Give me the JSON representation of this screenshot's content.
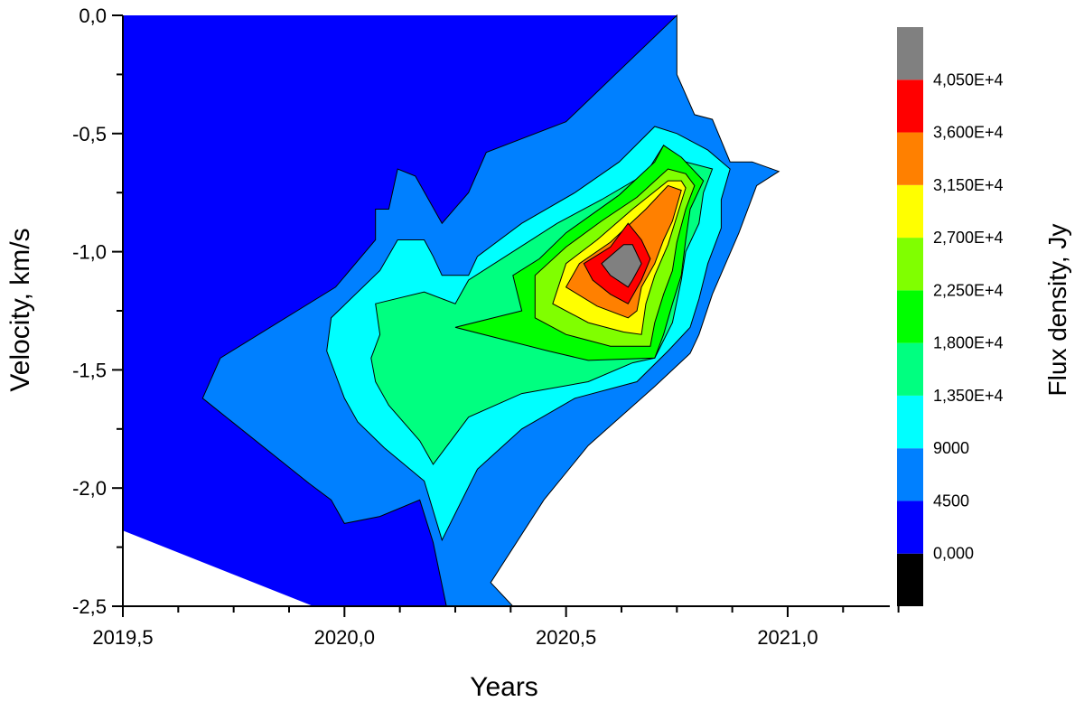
{
  "chart_data": {
    "type": "contour",
    "xlabel": "Years",
    "ylabel": "Velocity, km/s",
    "colorbar_label": "Flux density, Jy",
    "xlim": [
      2019.5,
      2021.25
    ],
    "ylim": [
      -2.5,
      0.0
    ],
    "xticks": [
      {
        "value": 2019.5,
        "label": "2019,5"
      },
      {
        "value": 2020.0,
        "label": "2020,0"
      },
      {
        "value": 2020.5,
        "label": "2020,5"
      },
      {
        "value": 2021.0,
        "label": "2021,0"
      }
    ],
    "yticks": [
      {
        "value": 0.0,
        "label": "0,0"
      },
      {
        "value": -0.5,
        "label": "-0,5"
      },
      {
        "value": -1.0,
        "label": "-1,0"
      },
      {
        "value": -1.5,
        "label": "-1,5"
      },
      {
        "value": -2.0,
        "label": "-2,0"
      },
      {
        "value": -2.5,
        "label": "-2,5"
      }
    ],
    "levels": [
      {
        "min": -4500,
        "max": 0,
        "label": "0,000",
        "color": "#000000"
      },
      {
        "min": 0,
        "max": 4500,
        "label": "4500",
        "color": "#0000ff"
      },
      {
        "min": 4500,
        "max": 9000,
        "label": "9000",
        "color": "#0080ff"
      },
      {
        "min": 9000,
        "max": 13500,
        "label": "1,350E+4",
        "color": "#00ffff"
      },
      {
        "min": 13500,
        "max": 18000,
        "label": "1,800E+4",
        "color": "#00ff80"
      },
      {
        "min": 18000,
        "max": 22500,
        "label": "2,250E+4",
        "color": "#00ff00"
      },
      {
        "min": 22500,
        "max": 27000,
        "label": "2,700E+4",
        "color": "#80ff00"
      },
      {
        "min": 27000,
        "max": 31500,
        "label": "3,150E+4",
        "color": "#ffff00"
      },
      {
        "min": 31500,
        "max": 36000,
        "label": "3,600E+4",
        "color": "#ff8000"
      },
      {
        "min": 36000,
        "max": 40500,
        "label": "4,050E+4",
        "color": "#ff0000"
      },
      {
        "min": 40500,
        "max": 45000,
        "label": "",
        "color": "#808080"
      }
    ],
    "regions": [
      {
        "level": 1,
        "points": [
          [
            2019.5,
            0.0
          ],
          [
            2020.75,
            0.0
          ],
          [
            2020.75,
            -0.25
          ],
          [
            2020.79,
            -0.42
          ],
          [
            2020.83,
            -0.44
          ],
          [
            2020.87,
            -0.62
          ],
          [
            2020.92,
            -0.62
          ],
          [
            2020.98,
            -0.66
          ],
          [
            2020.93,
            -0.72
          ],
          [
            2020.89,
            -0.92
          ],
          [
            2020.86,
            -1.05
          ],
          [
            2020.83,
            -1.18
          ],
          [
            2020.8,
            -1.35
          ],
          [
            2020.78,
            -1.43
          ],
          [
            2020.7,
            -1.57
          ],
          [
            2020.55,
            -1.82
          ],
          [
            2020.45,
            -2.05
          ],
          [
            2020.33,
            -2.4
          ],
          [
            2020.38,
            -2.5
          ],
          [
            2019.93,
            -2.5
          ],
          [
            2019.5,
            -2.18
          ]
        ]
      },
      {
        "level": 2,
        "points": [
          [
            2020.75,
            0.0
          ],
          [
            2020.75,
            -0.25
          ],
          [
            2020.79,
            -0.42
          ],
          [
            2020.83,
            -0.44
          ],
          [
            2020.87,
            -0.62
          ],
          [
            2020.92,
            -0.62
          ],
          [
            2020.98,
            -0.66
          ],
          [
            2020.93,
            -0.72
          ],
          [
            2020.89,
            -0.92
          ],
          [
            2020.86,
            -1.05
          ],
          [
            2020.83,
            -1.18
          ],
          [
            2020.8,
            -1.35
          ],
          [
            2020.78,
            -1.43
          ],
          [
            2020.7,
            -1.57
          ],
          [
            2020.55,
            -1.82
          ],
          [
            2020.45,
            -2.05
          ],
          [
            2020.33,
            -2.4
          ],
          [
            2020.38,
            -2.5
          ],
          [
            2020.23,
            -2.5
          ],
          [
            2020.2,
            -2.23
          ],
          [
            2020.17,
            -2.05
          ],
          [
            2020.08,
            -2.12
          ],
          [
            2020.0,
            -2.15
          ],
          [
            2019.97,
            -2.05
          ],
          [
            2019.92,
            -1.98
          ],
          [
            2019.68,
            -1.62
          ],
          [
            2019.72,
            -1.45
          ],
          [
            2019.98,
            -1.15
          ],
          [
            2020.07,
            -0.95
          ],
          [
            2020.07,
            -0.82
          ],
          [
            2020.1,
            -0.82
          ],
          [
            2020.12,
            -0.65
          ],
          [
            2020.16,
            -0.68
          ],
          [
            2020.22,
            -0.88
          ],
          [
            2020.28,
            -0.75
          ],
          [
            2020.32,
            -0.58
          ],
          [
            2020.5,
            -0.45
          ]
        ]
      },
      {
        "level": 3,
        "points": [
          [
            2019.96,
            -1.42
          ],
          [
            2019.97,
            -1.28
          ],
          [
            2020.08,
            -1.08
          ],
          [
            2020.12,
            -0.95
          ],
          [
            2020.18,
            -0.95
          ],
          [
            2020.2,
            -1.02
          ],
          [
            2020.22,
            -1.1
          ],
          [
            2020.28,
            -1.1
          ],
          [
            2020.3,
            -1.02
          ],
          [
            2020.4,
            -0.88
          ],
          [
            2020.52,
            -0.75
          ],
          [
            2020.62,
            -0.62
          ],
          [
            2020.7,
            -0.47
          ],
          [
            2020.75,
            -0.5
          ],
          [
            2020.82,
            -0.57
          ],
          [
            2020.87,
            -0.65
          ],
          [
            2020.85,
            -0.78
          ],
          [
            2020.85,
            -0.9
          ],
          [
            2020.82,
            -1.05
          ],
          [
            2020.8,
            -1.2
          ],
          [
            2020.78,
            -1.32
          ],
          [
            2020.73,
            -1.42
          ],
          [
            2020.66,
            -1.55
          ],
          [
            2020.52,
            -1.62
          ],
          [
            2020.4,
            -1.75
          ],
          [
            2020.3,
            -1.92
          ],
          [
            2020.22,
            -2.22
          ],
          [
            2020.18,
            -1.97
          ],
          [
            2020.09,
            -1.83
          ],
          [
            2020.03,
            -1.72
          ],
          [
            2020.0,
            -1.62
          ]
        ]
      },
      {
        "level": 4,
        "points": [
          [
            2020.06,
            -1.45
          ],
          [
            2020.08,
            -1.35
          ],
          [
            2020.07,
            -1.22
          ],
          [
            2020.18,
            -1.17
          ],
          [
            2020.25,
            -1.22
          ],
          [
            2020.28,
            -1.12
          ],
          [
            2020.38,
            -1.0
          ],
          [
            2020.48,
            -0.88
          ],
          [
            2020.58,
            -0.78
          ],
          [
            2020.68,
            -0.67
          ],
          [
            2020.72,
            -0.55
          ],
          [
            2020.77,
            -0.62
          ],
          [
            2020.83,
            -0.65
          ],
          [
            2020.81,
            -0.75
          ],
          [
            2020.8,
            -0.88
          ],
          [
            2020.77,
            -1.0
          ],
          [
            2020.76,
            -1.12
          ],
          [
            2020.74,
            -1.3
          ],
          [
            2020.7,
            -1.45
          ],
          [
            2020.65,
            -1.47
          ],
          [
            2020.55,
            -1.55
          ],
          [
            2020.4,
            -1.6
          ],
          [
            2020.28,
            -1.7
          ],
          [
            2020.2,
            -1.9
          ],
          [
            2020.17,
            -1.8
          ],
          [
            2020.1,
            -1.65
          ],
          [
            2020.07,
            -1.55
          ]
        ]
      },
      {
        "level": 5,
        "points": [
          [
            2020.25,
            -1.32
          ],
          [
            2020.4,
            -1.25
          ],
          [
            2020.38,
            -1.1
          ],
          [
            2020.44,
            -1.03
          ],
          [
            2020.5,
            -0.92
          ],
          [
            2020.62,
            -0.76
          ],
          [
            2020.7,
            -0.62
          ],
          [
            2020.72,
            -0.55
          ],
          [
            2020.76,
            -0.6
          ],
          [
            2020.81,
            -0.7
          ],
          [
            2020.78,
            -0.82
          ],
          [
            2020.77,
            -0.95
          ],
          [
            2020.76,
            -1.1
          ],
          [
            2020.74,
            -1.22
          ],
          [
            2020.72,
            -1.35
          ],
          [
            2020.7,
            -1.45
          ],
          [
            2020.55,
            -1.46
          ],
          [
            2020.46,
            -1.42
          ]
        ]
      },
      {
        "level": 6,
        "points": [
          [
            2020.43,
            -1.28
          ],
          [
            2020.43,
            -1.1
          ],
          [
            2020.5,
            -0.98
          ],
          [
            2020.58,
            -0.87
          ],
          [
            2020.66,
            -0.77
          ],
          [
            2020.73,
            -0.65
          ],
          [
            2020.77,
            -0.67
          ],
          [
            2020.79,
            -0.72
          ],
          [
            2020.77,
            -0.82
          ],
          [
            2020.75,
            -0.96
          ],
          [
            2020.74,
            -1.08
          ],
          [
            2020.72,
            -1.18
          ],
          [
            2020.7,
            -1.3
          ],
          [
            2020.69,
            -1.4
          ],
          [
            2020.6,
            -1.4
          ],
          [
            2020.5,
            -1.35
          ]
        ]
      },
      {
        "level": 7,
        "points": [
          [
            2020.47,
            -1.22
          ],
          [
            2020.5,
            -1.05
          ],
          [
            2020.57,
            -0.95
          ],
          [
            2020.65,
            -0.82
          ],
          [
            2020.73,
            -0.7
          ],
          [
            2020.76,
            -0.7
          ],
          [
            2020.77,
            -0.73
          ],
          [
            2020.75,
            -0.85
          ],
          [
            2020.73,
            -0.97
          ],
          [
            2020.7,
            -1.1
          ],
          [
            2020.68,
            -1.22
          ],
          [
            2020.67,
            -1.35
          ],
          [
            2020.63,
            -1.34
          ],
          [
            2020.55,
            -1.3
          ]
        ]
      },
      {
        "level": 8,
        "points": [
          [
            2020.5,
            -1.15
          ],
          [
            2020.53,
            -1.05
          ],
          [
            2020.6,
            -0.96
          ],
          [
            2020.68,
            -0.82
          ],
          [
            2020.73,
            -0.72
          ],
          [
            2020.76,
            -0.74
          ],
          [
            2020.74,
            -0.87
          ],
          [
            2020.72,
            -0.95
          ],
          [
            2020.7,
            -1.05
          ],
          [
            2020.67,
            -1.15
          ],
          [
            2020.66,
            -1.25
          ],
          [
            2020.64,
            -1.28
          ],
          [
            2020.57,
            -1.23
          ]
        ]
      },
      {
        "level": 9,
        "points": [
          [
            2020.54,
            -1.05
          ],
          [
            2020.6,
            -0.98
          ],
          [
            2020.64,
            -0.88
          ],
          [
            2020.67,
            -0.95
          ],
          [
            2020.69,
            -1.03
          ],
          [
            2020.67,
            -1.12
          ],
          [
            2020.64,
            -1.22
          ],
          [
            2020.6,
            -1.18
          ],
          [
            2020.56,
            -1.12
          ]
        ]
      },
      {
        "level": 10,
        "points": [
          [
            2020.58,
            -1.05
          ],
          [
            2020.63,
            -0.97
          ],
          [
            2020.65,
            -0.97
          ],
          [
            2020.67,
            -1.05
          ],
          [
            2020.65,
            -1.12
          ],
          [
            2020.64,
            -1.15
          ],
          [
            2020.6,
            -1.1
          ]
        ]
      }
    ]
  }
}
